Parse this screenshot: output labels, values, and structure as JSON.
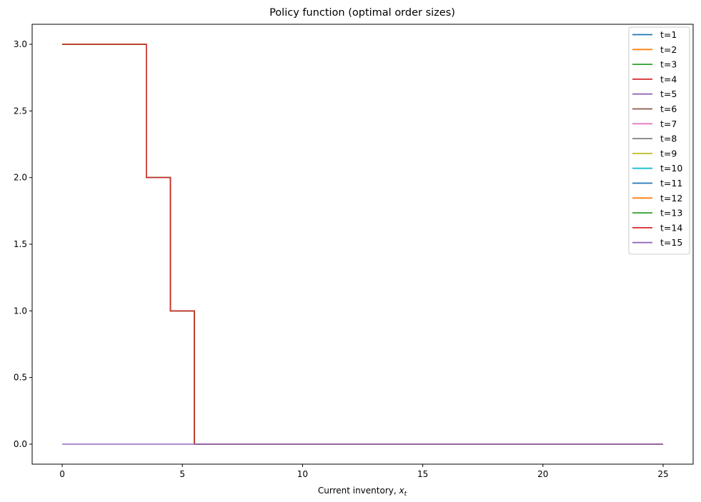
{
  "chart_data": {
    "type": "line",
    "title": "Policy function (optimal order sizes)",
    "xlabel_main": "Current inventory, ",
    "xlabel_var": "x",
    "xlabel_sub": "t",
    "ylabel": "",
    "xlim": [
      -1.25,
      26.25
    ],
    "ylim": [
      -0.15,
      3.15
    ],
    "xticks": [
      0,
      5,
      10,
      15,
      20,
      25
    ],
    "yticks": [
      0.0,
      0.5,
      1.0,
      1.5,
      2.0,
      2.5,
      3.0
    ],
    "xtick_labels": [
      "0",
      "5",
      "10",
      "15",
      "20",
      "25"
    ],
    "ytick_labels": [
      "0.0",
      "0.5",
      "1.0",
      "1.5",
      "2.0",
      "2.5",
      "3.0"
    ],
    "grid": false,
    "legend_position": "top-right",
    "drawstyle": "steps-mid",
    "x": [
      0,
      1,
      2,
      3,
      4,
      5,
      6,
      7,
      8,
      9,
      10,
      11,
      12,
      13,
      14,
      15,
      16,
      17,
      18,
      19,
      20,
      21,
      22,
      23,
      24,
      25
    ],
    "series": [
      {
        "name": "t=1",
        "color": "#1f77b4",
        "values": [
          3,
          3,
          3,
          3,
          2,
          1,
          0,
          0,
          0,
          0,
          0,
          0,
          0,
          0,
          0,
          0,
          0,
          0,
          0,
          0,
          0,
          0,
          0,
          0,
          0,
          0
        ]
      },
      {
        "name": "t=2",
        "color": "#ff7f0e",
        "values": [
          3,
          3,
          3,
          3,
          2,
          1,
          0,
          0,
          0,
          0,
          0,
          0,
          0,
          0,
          0,
          0,
          0,
          0,
          0,
          0,
          0,
          0,
          0,
          0,
          0,
          0
        ]
      },
      {
        "name": "t=3",
        "color": "#2ca02c",
        "values": [
          3,
          3,
          3,
          3,
          2,
          1,
          0,
          0,
          0,
          0,
          0,
          0,
          0,
          0,
          0,
          0,
          0,
          0,
          0,
          0,
          0,
          0,
          0,
          0,
          0,
          0
        ]
      },
      {
        "name": "t=4",
        "color": "#d62728",
        "values": [
          3,
          3,
          3,
          3,
          2,
          1,
          0,
          0,
          0,
          0,
          0,
          0,
          0,
          0,
          0,
          0,
          0,
          0,
          0,
          0,
          0,
          0,
          0,
          0,
          0,
          0
        ]
      },
      {
        "name": "t=5",
        "color": "#9467bd",
        "values": [
          3,
          3,
          3,
          3,
          2,
          1,
          0,
          0,
          0,
          0,
          0,
          0,
          0,
          0,
          0,
          0,
          0,
          0,
          0,
          0,
          0,
          0,
          0,
          0,
          0,
          0
        ]
      },
      {
        "name": "t=6",
        "color": "#8c564b",
        "values": [
          3,
          3,
          3,
          3,
          2,
          1,
          0,
          0,
          0,
          0,
          0,
          0,
          0,
          0,
          0,
          0,
          0,
          0,
          0,
          0,
          0,
          0,
          0,
          0,
          0,
          0
        ]
      },
      {
        "name": "t=7",
        "color": "#e377c2",
        "values": [
          3,
          3,
          3,
          3,
          2,
          1,
          0,
          0,
          0,
          0,
          0,
          0,
          0,
          0,
          0,
          0,
          0,
          0,
          0,
          0,
          0,
          0,
          0,
          0,
          0,
          0
        ]
      },
      {
        "name": "t=8",
        "color": "#7f7f7f",
        "values": [
          3,
          3,
          3,
          3,
          2,
          1,
          0,
          0,
          0,
          0,
          0,
          0,
          0,
          0,
          0,
          0,
          0,
          0,
          0,
          0,
          0,
          0,
          0,
          0,
          0,
          0
        ]
      },
      {
        "name": "t=9",
        "color": "#bcbd22",
        "values": [
          3,
          3,
          3,
          3,
          2,
          1,
          0,
          0,
          0,
          0,
          0,
          0,
          0,
          0,
          0,
          0,
          0,
          0,
          0,
          0,
          0,
          0,
          0,
          0,
          0,
          0
        ]
      },
      {
        "name": "t=10",
        "color": "#17becf",
        "values": [
          3,
          3,
          3,
          3,
          2,
          1,
          0,
          0,
          0,
          0,
          0,
          0,
          0,
          0,
          0,
          0,
          0,
          0,
          0,
          0,
          0,
          0,
          0,
          0,
          0,
          0
        ]
      },
      {
        "name": "t=11",
        "color": "#1f77b4",
        "values": [
          3,
          3,
          3,
          3,
          2,
          1,
          0,
          0,
          0,
          0,
          0,
          0,
          0,
          0,
          0,
          0,
          0,
          0,
          0,
          0,
          0,
          0,
          0,
          0,
          0,
          0
        ]
      },
      {
        "name": "t=12",
        "color": "#ff7f0e",
        "values": [
          3,
          3,
          3,
          3,
          2,
          1,
          0,
          0,
          0,
          0,
          0,
          0,
          0,
          0,
          0,
          0,
          0,
          0,
          0,
          0,
          0,
          0,
          0,
          0,
          0,
          0
        ]
      },
      {
        "name": "t=13",
        "color": "#2ca02c",
        "values": [
          3,
          3,
          3,
          3,
          2,
          1,
          0,
          0,
          0,
          0,
          0,
          0,
          0,
          0,
          0,
          0,
          0,
          0,
          0,
          0,
          0,
          0,
          0,
          0,
          0,
          0
        ]
      },
      {
        "name": "t=14",
        "color": "#d62728",
        "values": [
          3,
          3,
          3,
          3,
          2,
          1,
          0,
          0,
          0,
          0,
          0,
          0,
          0,
          0,
          0,
          0,
          0,
          0,
          0,
          0,
          0,
          0,
          0,
          0,
          0,
          0
        ]
      },
      {
        "name": "t=15",
        "color": "#9467bd",
        "values": [
          0,
          0,
          0,
          0,
          0,
          0,
          0,
          0,
          0,
          0,
          0,
          0,
          0,
          0,
          0,
          0,
          0,
          0,
          0,
          0,
          0,
          0,
          0,
          0,
          0,
          0
        ]
      }
    ]
  }
}
